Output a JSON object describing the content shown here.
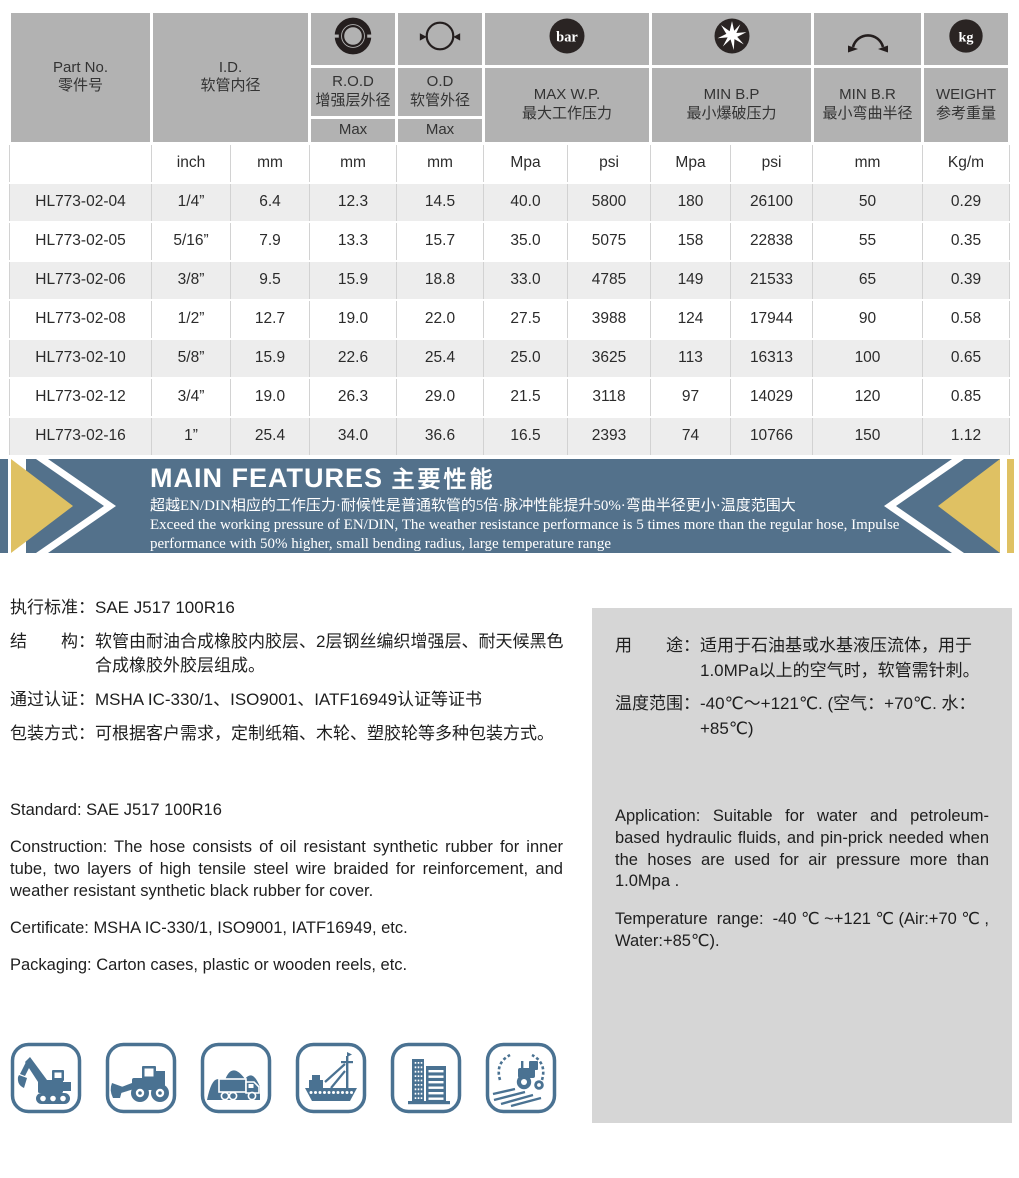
{
  "colors": {
    "banner_blue": "#53718b",
    "accent_gold": "#dfc163",
    "header_gray": "#b2b2b2",
    "panel_gray": "#d6d6d6",
    "row_alt_gray": "#ededed",
    "icon_blue": "#4a7292",
    "dark_icon": "#241e1e"
  },
  "spec_table": {
    "columns": {
      "part_no": {
        "en": "Part No.",
        "zh": "零件号"
      },
      "id": {
        "en": "I.D.",
        "zh": "软管内径"
      },
      "rod": {
        "en": "R.O.D",
        "zh": "增强层外径",
        "max": "Max",
        "icon": "rod-ring-icon"
      },
      "od": {
        "en": "O.D",
        "zh": "软管外径",
        "max": "Max",
        "icon": "od-circle-icon"
      },
      "max_wp": {
        "en": "MAX W.P.",
        "zh": "最大工作压力",
        "icon": "bar-icon"
      },
      "min_bp": {
        "en": "MIN B.P",
        "zh": "最小爆破压力",
        "icon": "burst-icon"
      },
      "min_br": {
        "en": "MIN B.R",
        "zh": "最小弯曲半径",
        "icon": "bend-radius-icon"
      },
      "weight": {
        "en": "WEIGHT",
        "zh": "参考重量",
        "icon": "kg-icon"
      }
    },
    "units": [
      "inch",
      "mm",
      "mm",
      "mm",
      "Mpa",
      "psi",
      "Mpa",
      "psi",
      "mm",
      "Kg/m"
    ],
    "rows": [
      [
        "HL773-02-04",
        "1/4”",
        "6.4",
        "12.3",
        "14.5",
        "40.0",
        "5800",
        "180",
        "26100",
        "50",
        "0.29"
      ],
      [
        "HL773-02-05",
        "5/16”",
        "7.9",
        "13.3",
        "15.7",
        "35.0",
        "5075",
        "158",
        "22838",
        "55",
        "0.35"
      ],
      [
        "HL773-02-06",
        "3/8”",
        "9.5",
        "15.9",
        "18.8",
        "33.0",
        "4785",
        "149",
        "21533",
        "65",
        "0.39"
      ],
      [
        "HL773-02-08",
        "1/2”",
        "12.7",
        "19.0",
        "22.0",
        "27.5",
        "3988",
        "124",
        "17944",
        "90",
        "0.58"
      ],
      [
        "HL773-02-10",
        "5/8”",
        "15.9",
        "22.6",
        "25.4",
        "25.0",
        "3625",
        "113",
        "16313",
        "100",
        "0.65"
      ],
      [
        "HL773-02-12",
        "3/4”",
        "19.0",
        "26.3",
        "29.0",
        "21.5",
        "3118",
        "97",
        "14029",
        "120",
        "0.85"
      ],
      [
        "HL773-02-16",
        "1”",
        "25.4",
        "34.0",
        "36.6",
        "16.5",
        "2393",
        "74",
        "10766",
        "150",
        "1.12"
      ]
    ]
  },
  "banner": {
    "title_en": "MAIN FEATURES",
    "title_zh": "主要性能",
    "line_zh": "超越EN/DIN相应的工作压力·耐候性是普通软管的5倍·脉冲性能提升50%·弯曲半径更小·温度范围大",
    "line_en": "Exceed the working pressure of EN/DIN, The weather resistance performance is 5 times more than the regular hose, Impulse performance with 50% higher, small bending radius, large temperature range"
  },
  "specs_zh": {
    "rows": [
      {
        "label": "执行标准：",
        "value": "SAE J517 100R16"
      },
      {
        "label": "结　　构：",
        "value": "软管由耐油合成橡胶内胶层、2层钢丝编织增强层、耐天候黑色合成橡胶外胶层组成。"
      },
      {
        "label": "通过认证：",
        "value": "MSHA IC-330/1、ISO9001、IATF16949认证等证书"
      },
      {
        "label": "包装方式：",
        "value": "可根据客户需求，定制纸箱、木轮、塑胶轮等多种包装方式。"
      }
    ]
  },
  "usage_zh": {
    "rows": [
      {
        "label": "用　　途：",
        "value": "适用于石油基或水基液压流体，用于1.0MPa以上的空气时，软管需针刺。"
      },
      {
        "label": "温度范围：",
        "value": "-40℃～+121℃. (空气：+70℃. 水：+85℃)"
      }
    ]
  },
  "specs_en": [
    "Standard: SAE J517 100R16",
    "Construction:  The hose consists of oil resistant synthetic rubber for inner tube, two layers of high tensile steel wire braided for reinforcement, and weather resistant synthetic black rubber for cover.",
    "Certificate: MSHA IC-330/1, ISO9001, IATF16949,  etc.",
    "Packaging: Carton cases, plastic or wooden reels, etc."
  ],
  "usage_en": [
    "Application: Suitable for water and petroleum-based hydraulic fluids, and pin-prick needed when the hoses are used for air pressure more than 1.0Mpa .",
    "Temperature range: -40℃~+121℃(Air:+70℃, Water:+85℃)."
  ],
  "application_icons": [
    "excavator",
    "wheel-loader",
    "dump-truck",
    "ship",
    "building",
    "tractor-field"
  ]
}
